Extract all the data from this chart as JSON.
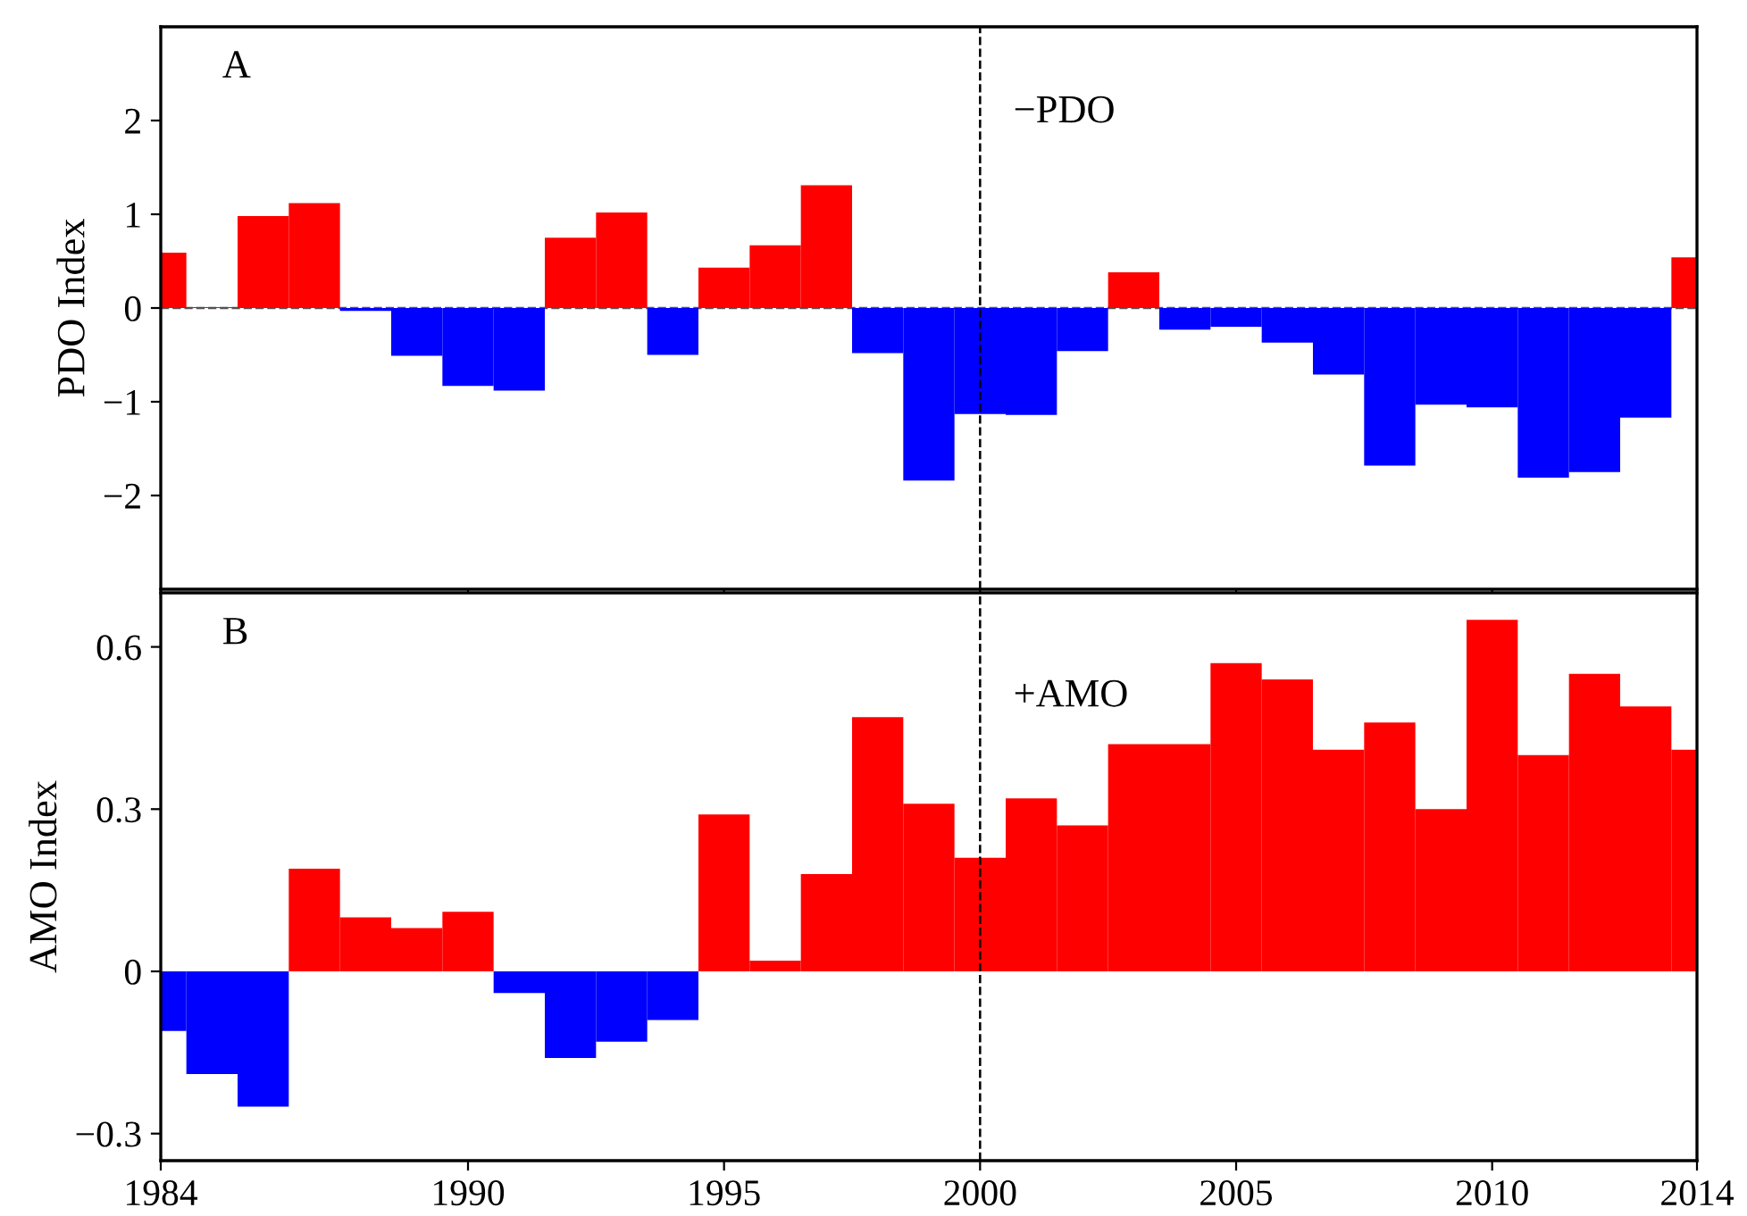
{
  "chart_data": [
    {
      "type": "bar",
      "ylabel": "PDO Index",
      "annotations": [
        "A",
        "−PDO"
      ],
      "x": [
        1984,
        1985,
        1986,
        1987,
        1988,
        1989,
        1990,
        1991,
        1992,
        1993,
        1994,
        1995,
        1996,
        1997,
        1998,
        1999,
        2000,
        2001,
        2002,
        2003,
        2004,
        2005,
        2006,
        2007,
        2008,
        2009,
        2010,
        2011,
        2012,
        2013,
        2014
      ],
      "values": [
        0.59,
        0.01,
        0.98,
        1.12,
        -0.03,
        -0.51,
        -0.83,
        -0.88,
        0.75,
        1.02,
        -0.5,
        0.43,
        0.67,
        1.31,
        -0.48,
        -1.84,
        -1.13,
        -1.14,
        -0.46,
        0.38,
        -0.23,
        -0.2,
        -0.37,
        -0.71,
        -1.68,
        -1.03,
        -1.06,
        -1.81,
        -1.75,
        -1.17,
        0.54
      ],
      "colors": [
        "#ff0000",
        "#ff0000",
        "#ff0000",
        "#ff0000",
        "#0000ff",
        "#0000ff",
        "#0000ff",
        "#0000ff",
        "#ff0000",
        "#ff0000",
        "#0000ff",
        "#ff0000",
        "#ff0000",
        "#ff0000",
        "#0000ff",
        "#0000ff",
        "#0000ff",
        "#0000ff",
        "#0000ff",
        "#ff0000",
        "#0000ff",
        "#0000ff",
        "#0000ff",
        "#0000ff",
        "#0000ff",
        "#0000ff",
        "#0000ff",
        "#0000ff",
        "#0000ff",
        "#0000ff",
        "#ff0000"
      ],
      "xlim": [
        1984,
        2014
      ],
      "xticks": [
        1984,
        1990,
        1995,
        2000,
        2005,
        2010,
        2014
      ],
      "ylim": [
        -3,
        3
      ],
      "yticks": [
        {
          "value": -2,
          "label": "−2"
        },
        {
          "value": -1,
          "label": "−1"
        },
        0,
        1,
        2
      ],
      "tick_labels": "y",
      "grid": false,
      "legend": false,
      "ref_lines": [
        {
          "axis": "x",
          "value": 2000,
          "line_style": "dashed",
          "color": "#000000"
        },
        {
          "axis": "y",
          "value": 0,
          "line_style": "dashed",
          "color": "#555555"
        }
      ]
    },
    {
      "type": "bar",
      "ylabel": "AMO Index",
      "annotations": [
        "B",
        "+AMO"
      ],
      "x": [
        1984,
        1985,
        1986,
        1987,
        1988,
        1989,
        1990,
        1991,
        1992,
        1993,
        1994,
        1995,
        1996,
        1997,
        1998,
        1999,
        2000,
        2001,
        2002,
        2003,
        2004,
        2005,
        2006,
        2007,
        2008,
        2009,
        2010,
        2011,
        2012,
        2013,
        2014
      ],
      "values": [
        -0.11,
        -0.19,
        -0.25,
        0.19,
        0.1,
        0.08,
        0.11,
        -0.04,
        -0.16,
        -0.13,
        -0.09,
        0.29,
        0.02,
        0.18,
        0.47,
        0.31,
        0.21,
        0.32,
        0.27,
        0.42,
        0.42,
        0.57,
        0.54,
        0.41,
        0.46,
        0.3,
        0.65,
        0.4,
        0.55,
        0.49,
        0.41
      ],
      "colors": [
        "#0000ff",
        "#0000ff",
        "#0000ff",
        "#ff0000",
        "#ff0000",
        "#ff0000",
        "#ff0000",
        "#0000ff",
        "#0000ff",
        "#0000ff",
        "#0000ff",
        "#ff0000",
        "#ff0000",
        "#ff0000",
        "#ff0000",
        "#ff0000",
        "#ff0000",
        "#ff0000",
        "#ff0000",
        "#ff0000",
        "#ff0000",
        "#ff0000",
        "#ff0000",
        "#ff0000",
        "#ff0000",
        "#ff0000",
        "#ff0000",
        "#ff0000",
        "#ff0000",
        "#ff0000",
        "#ff0000"
      ],
      "xlim": [
        1984,
        2014
      ],
      "xticks": [
        1984,
        1990,
        1995,
        2000,
        2005,
        2010,
        2014
      ],
      "ylim": [
        -0.35,
        0.7
      ],
      "yticks": [
        {
          "value": -0.3,
          "label": "−0.3"
        },
        0,
        0.3,
        0.6
      ],
      "grid": false,
      "legend": false,
      "ref_lines": [
        {
          "axis": "x",
          "value": 2000,
          "line_style": "dashed",
          "color": "#000000"
        }
      ]
    }
  ]
}
